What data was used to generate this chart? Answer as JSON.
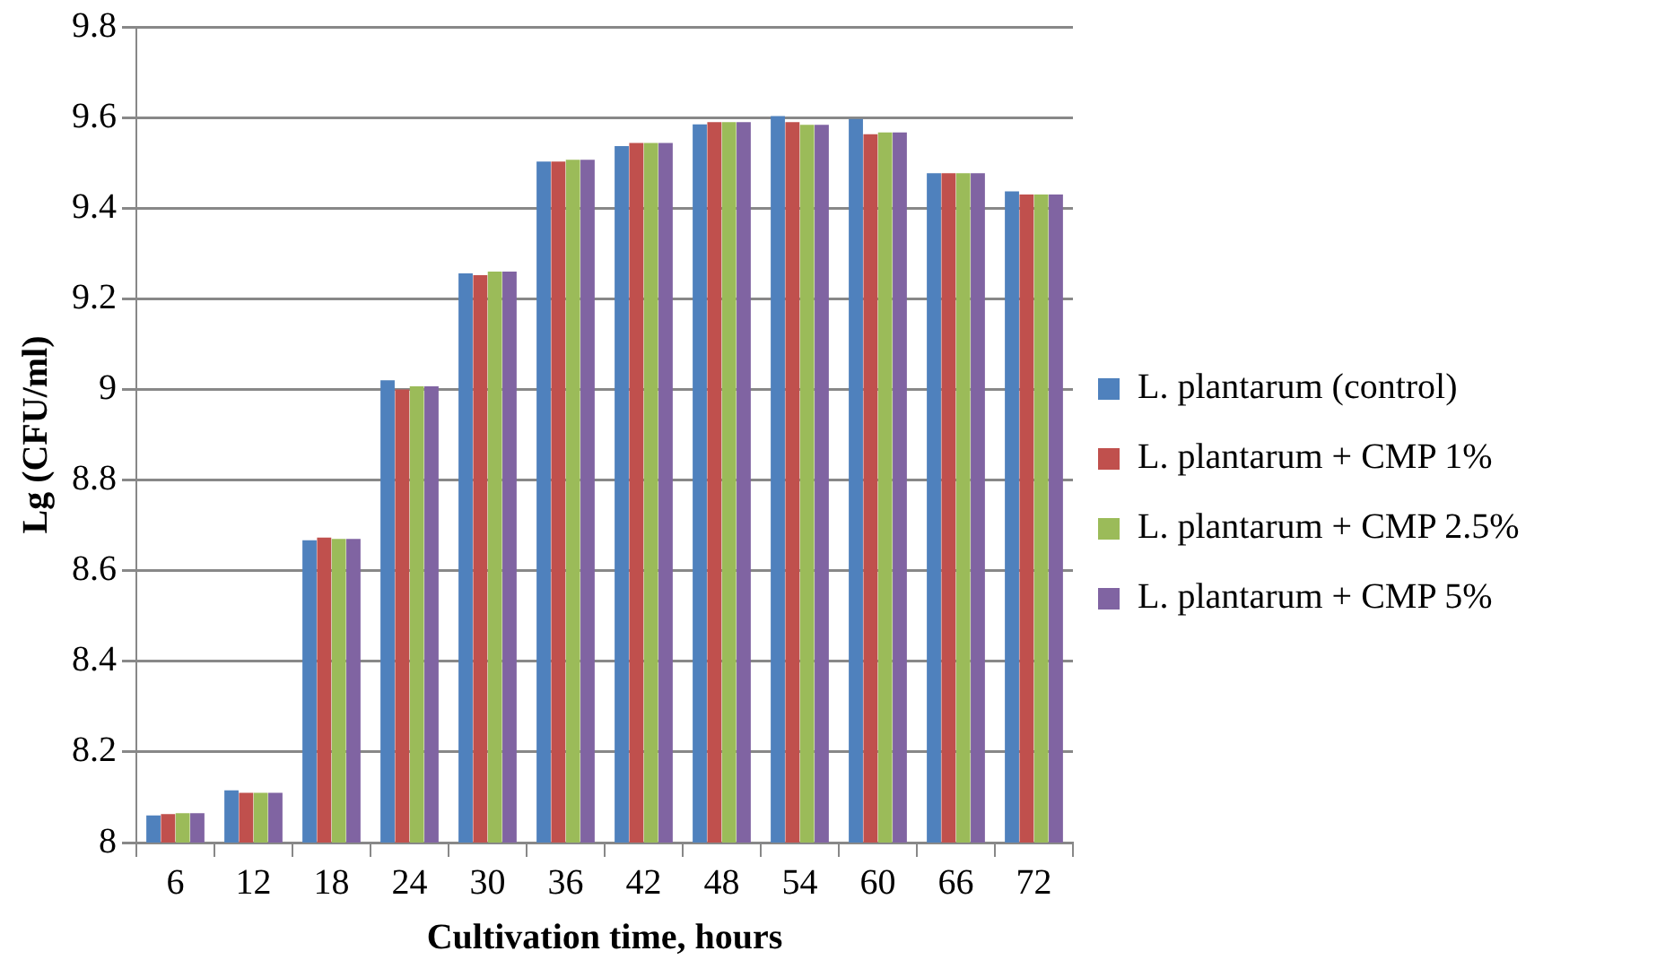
{
  "chart_data": {
    "type": "bar",
    "xlabel": "Cultivation time, hours",
    "ylabel": "Lg (CFU/ml)",
    "categories": [
      "6",
      "12",
      "18",
      "24",
      "30",
      "36",
      "42",
      "48",
      "54",
      "60",
      "66",
      "72"
    ],
    "series": [
      {
        "name": "L. plantarum (control)",
        "color": "#4f81bd",
        "values": [
          8.06,
          8.115,
          8.667,
          9.02,
          9.256,
          9.503,
          9.537,
          9.585,
          9.603,
          9.597,
          9.477,
          9.437
        ]
      },
      {
        "name": "L. plantarum + CMP 1%",
        "color": "#c0504d",
        "values": [
          8.063,
          8.11,
          8.673,
          9.0,
          9.252,
          9.503,
          9.544,
          9.59,
          9.59,
          9.563,
          9.477,
          9.43
        ]
      },
      {
        "name": "L. plantarum + CMP 2.5%",
        "color": "#9bbb59",
        "values": [
          8.065,
          8.11,
          8.67,
          9.007,
          9.26,
          9.507,
          9.544,
          9.59,
          9.584,
          9.567,
          9.477,
          9.43
        ]
      },
      {
        "name": "L. plantarum + CMP 5%",
        "color": "#8064a2",
        "values": [
          8.065,
          8.11,
          8.67,
          9.007,
          9.26,
          9.507,
          9.544,
          9.59,
          9.584,
          9.567,
          9.477,
          9.43
        ]
      }
    ],
    "ylim": [
      8,
      9.8
    ],
    "yticks": [
      8,
      8.2,
      8.4,
      8.6,
      8.8,
      9,
      9.2,
      9.4,
      9.6,
      9.8
    ],
    "grid": "y",
    "legend": "right"
  }
}
